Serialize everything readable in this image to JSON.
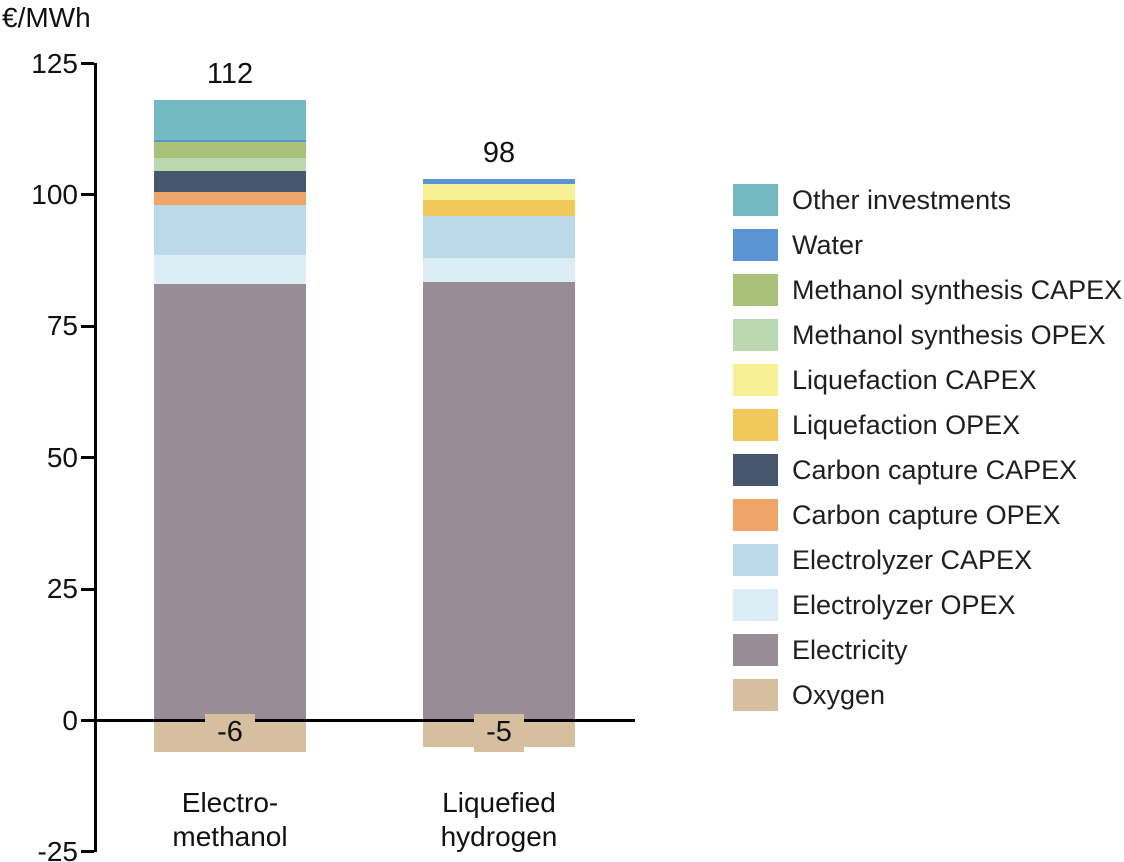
{
  "axis_title": "€/MWh",
  "chart_data": {
    "type": "bar",
    "stacked": true,
    "title": "",
    "xlabel": "",
    "ylabel": "€/MWh",
    "ylim": [
      -25,
      125
    ],
    "yticks": [
      125,
      100,
      75,
      50,
      25,
      0,
      -25
    ],
    "grid": false,
    "legend_position": "right",
    "categories": [
      {
        "label_lines": [
          "Electro-",
          "methanol"
        ],
        "total": "112",
        "negative_label": "-6"
      },
      {
        "label_lines": [
          "Liquefied",
          "hydrogen"
        ],
        "total": "98",
        "negative_label": "-5"
      }
    ],
    "series": [
      {
        "name": "Oxygen",
        "values": [
          -6,
          -5
        ]
      },
      {
        "name": "Electricity",
        "values": [
          83,
          83.5
        ]
      },
      {
        "name": "Electrolyzer OPEX",
        "values": [
          5.5,
          4.5
        ]
      },
      {
        "name": "Electrolyzer CAPEX",
        "values": [
          9.5,
          8
        ]
      },
      {
        "name": "Carbon capture OPEX",
        "values": [
          2.5,
          0
        ]
      },
      {
        "name": "Carbon capture CAPEX",
        "values": [
          4,
          0
        ]
      },
      {
        "name": "Liquefaction OPEX",
        "values": [
          0,
          3
        ]
      },
      {
        "name": "Liquefaction CAPEX",
        "values": [
          0,
          3
        ]
      },
      {
        "name": "Methanol synthesis OPEX",
        "values": [
          2.5,
          0
        ]
      },
      {
        "name": "Methanol synthesis CAPEX",
        "values": [
          3,
          0
        ]
      },
      {
        "name": "Water",
        "values": [
          0.5,
          1
        ]
      },
      {
        "name": "Other investments",
        "values": [
          7.5,
          0
        ]
      }
    ],
    "colors": {
      "Other investments": "#75b9c3",
      "Water": "#5b94d3",
      "Methanol synthesis CAPEX": "#a9c178",
      "Methanol synthesis OPEX": "#bad9b2",
      "Liquefaction CAPEX": "#f8f095",
      "Liquefaction OPEX": "#f2c85a",
      "Carbon capture CAPEX": "#45566d",
      "Carbon capture OPEX": "#efa468",
      "Electrolyzer CAPEX": "#bcd9ea",
      "Electrolyzer OPEX": "#dcedf6",
      "Electricity": "#988c97",
      "Oxygen": "#d5bf9f"
    },
    "legend": [
      "Other investments",
      "Water",
      "Methanol synthesis CAPEX",
      "Methanol synthesis OPEX",
      "Liquefaction CAPEX",
      "Liquefaction OPEX",
      "Carbon capture CAPEX",
      "Carbon capture OPEX",
      "Electrolyzer CAPEX",
      "Electrolyzer OPEX",
      "Electricity",
      "Oxygen"
    ]
  }
}
